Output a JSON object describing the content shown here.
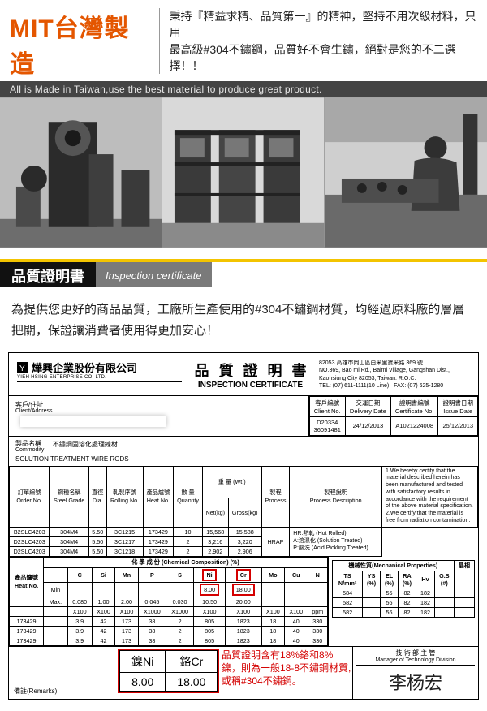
{
  "header": {
    "mit": "MIT台灣製造",
    "sub_l1": "秉持『精益求精、品質第一』的精神，堅持不用次級材料，只用",
    "sub_l2": "最高級#304不鏽鋼，品質好不會生鏽，絕對是您的不二選擇！！",
    "eng": "All is Made in Taiwan,use the best material to produce great product."
  },
  "section": {
    "cn": "品質證明書",
    "en": "Inspection certificate"
  },
  "intro": "為提供您更好的商品品質，工廠所生產使用的#304不鏽鋼材質，均經過原料廠的層層把關，保證讓消費者使用得更加安心！",
  "cert": {
    "company_cn": "燁興企業股份有限公司",
    "company_en": "YIEH HSING ENTERPRISE CO. LTD.",
    "title_cn": "品質證明書",
    "title_en": "INSPECTION CERTIFICATE",
    "addr1": "82053 高雄市岡山區白米里寶米路 369 號",
    "addr2": "NO.369, Bao mi Rd., Baimi Village, Gangshan Dist.,",
    "addr3": "Kaohsiung City 82053, Taiwan. R.O.C.",
    "tel": "TEL: (07) 611-1111(10 Line)",
    "fax": "FAX: (07) 625-1280",
    "client_lbl_cn": "客戶/住址",
    "client_lbl_en": "Client/Address",
    "h_clientno_cn": "客戶編號",
    "h_clientno_en": "Client No.",
    "h_deliv_cn": "交運日期",
    "h_deliv_en": "Delivery Date",
    "h_certno_cn": "證明書編號",
    "h_certno_en": "Certificate No.",
    "h_issue_cn": "證明書日期",
    "h_issue_en": "Issue Date",
    "client_no": "D20334\n36091481",
    "deliv": "24/12/2013",
    "cert_no": "A1021224008",
    "issue": "25/12/2013",
    "commod_lbl_cn": "製品名稱",
    "commod_lbl_en": "Commodity",
    "commod_cn": "不鏽鋼固溶化處理線材",
    "commod_en": "SOLUTION TREATMENT WIRE RODS",
    "cols": {
      "order_cn": "訂單編號",
      "order_en": "Order No.",
      "grade_cn": "鋼種名稱",
      "grade_en": "Steel Grade",
      "dia_cn": "直徑",
      "dia_en": "Dia.",
      "roll_cn": "軋製序號",
      "roll_en": "Rolling No.",
      "heat_cn": "產品爐號",
      "heat_en": "Heat No.",
      "qty_cn": "數 量",
      "qty_en": "Quantity",
      "wt_cn": "重 量 (Wt.)",
      "net": "Net(kg)",
      "gross": "Gross(kg)",
      "proc_cn": "製程",
      "proc_en": "Process",
      "pdesc_cn": "製程說明",
      "pdesc_en": "Process Description",
      "note_en": "1.We hereby certify that the material described herein has been manufactured and tested with satisfactory results in accordance with the requirement of the above material specification.\n2.We certify that the material is free from radiation contamination."
    },
    "rows": [
      {
        "order": "B2SLC4203",
        "grade": "304M4",
        "dia": "5.50",
        "roll": "3C1215",
        "heat": "173429",
        "qty": "10",
        "net": "15,568",
        "gross": "15,588"
      },
      {
        "order": "D2SLC4203",
        "grade": "304M4",
        "dia": "5.50",
        "roll": "3C1217",
        "heat": "173429",
        "qty": "2",
        "net": "3,216",
        "gross": "3,220"
      },
      {
        "order": "D2SLC4203",
        "grade": "304M4",
        "dia": "5.50",
        "roll": "3C1218",
        "heat": "173429",
        "qty": "2",
        "net": "2,902",
        "gross": "2,906"
      }
    ],
    "proc": "HRAP",
    "pdesc": "HR:熱軋  (Hot Rolled)\nA:溶濕化  (Solution Treated)\nP:酸洗  (Acid Pickling Treated)",
    "chem_title_cn": "化 學 成 份",
    "chem_title_en": "(Chemical Composition) (%)",
    "mech_title_cn": "機械性質",
    "mech_title_en": "(Mechanical Properties)",
    "crystal": "晶相",
    "heatno_lbl_cn": "產品爐號",
    "heatno_lbl_en": "Heat No.",
    "elems": [
      "C",
      "Si",
      "Mn",
      "P",
      "S",
      "Ni",
      "Cr",
      "Mo",
      "Cu",
      "N"
    ],
    "limits_min": [
      "",
      "",
      "",
      "",
      "",
      "8.00",
      "18.00",
      "",
      "",
      ""
    ],
    "limits_max": [
      "0.080",
      "1.00",
      "2.00",
      "0.045",
      "0.030",
      "10.50",
      "20.00",
      "",
      "",
      ""
    ],
    "units": [
      "X100",
      "X100",
      "X100",
      "X1000",
      "X1000",
      "X100",
      "X100",
      "X100",
      "X100",
      "ppm"
    ],
    "chem_rows": [
      {
        "heat": "173429",
        "v": [
          "3.9",
          "42",
          "173",
          "38",
          "2",
          "805",
          "1823",
          "18",
          "40",
          "330"
        ]
      },
      {
        "heat": "173429",
        "v": [
          "3.9",
          "42",
          "173",
          "38",
          "2",
          "805",
          "1823",
          "18",
          "40",
          "330"
        ]
      },
      {
        "heat": "173429",
        "v": [
          "3.9",
          "42",
          "173",
          "38",
          "2",
          "805",
          "1823",
          "18",
          "40",
          "330"
        ]
      }
    ],
    "mech_cols": [
      "TS\nN/mm²",
      "YS\n(%)",
      "EL\n(%)",
      "RA\n(%)",
      "Hv",
      "G.S\n(#)"
    ],
    "mech_rows": [
      [
        "584",
        "",
        "55",
        "82",
        "182",
        ""
      ],
      [
        "582",
        "",
        "56",
        "82",
        "182",
        ""
      ],
      [
        "582",
        "",
        "56",
        "82",
        "182",
        ""
      ]
    ],
    "remarks_lbl": "備註(Remarks):",
    "ni_lbl": "鎳Ni",
    "cr_lbl": "鉻Cr",
    "ni_val": "8.00",
    "cr_val": "18.00",
    "red_note": "品質證明含有18%鉻和8%鎳，則為一般18-8不鏽鋼材質,或稱#304不鏽鋼。",
    "sign_cn": "技 術 部 主 管",
    "sign_en": "Manager of Technology Division",
    "signature": "李杨宏"
  }
}
